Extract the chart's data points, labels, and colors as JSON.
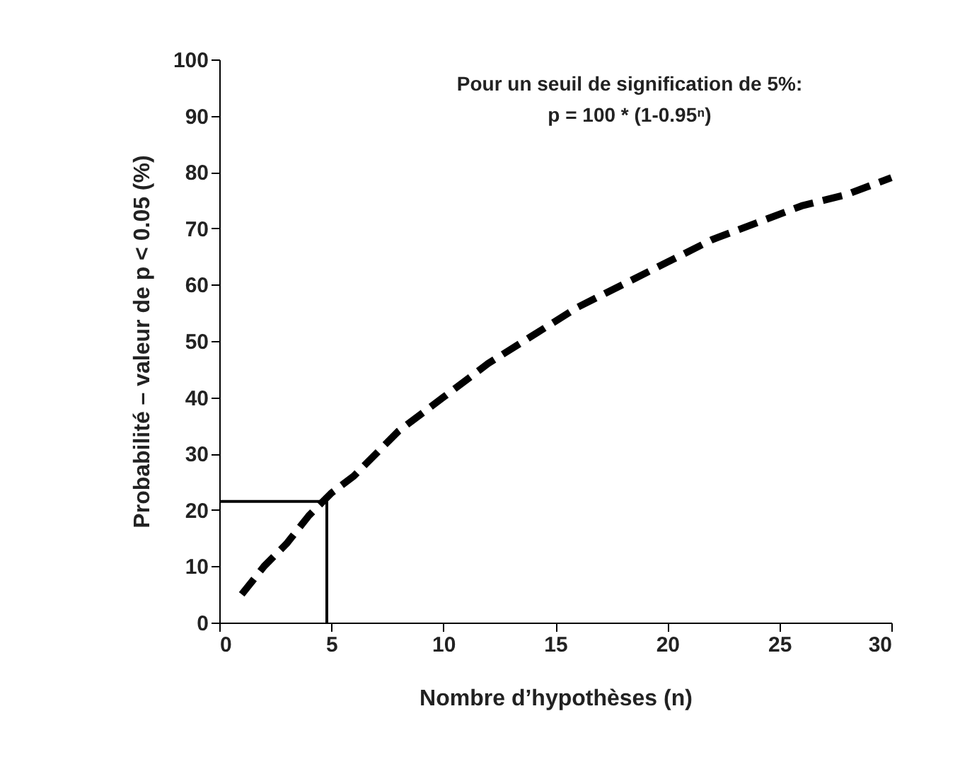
{
  "chart_data": {
    "type": "line",
    "xlabel": "Nombre d’hypothèses (n)",
    "ylabel": "Probabilité – valeur de p < 0.05 (%)",
    "annotations": [
      "Pour un seuil de signification de 5%:",
      "p = 100 * (1-0.95ⁿ)"
    ],
    "x": [
      1,
      2,
      3,
      4,
      5,
      6,
      7,
      8,
      9,
      10,
      12,
      14,
      16,
      18,
      20,
      22,
      24,
      26,
      28,
      30
    ],
    "series": [
      {
        "color": "#000000",
        "values": [
          5,
          10,
          14,
          19,
          23,
          26,
          30,
          34,
          37,
          40,
          46,
          51,
          56,
          60,
          64,
          68,
          71,
          74,
          76,
          79
        ]
      }
    ],
    "xlim": [
      0,
      30
    ],
    "xticks": [
      0,
      5,
      10,
      15,
      20,
      25,
      30
    ],
    "ylim": [
      0,
      100
    ],
    "yticks": [
      0,
      10,
      20,
      30,
      40,
      50,
      60,
      70,
      80,
      90,
      100
    ],
    "ref_lines": [
      {
        "axis": "x",
        "value": 4.8
      },
      {
        "axis": "y",
        "value": 21.5
      }
    ],
    "line_style": "dashed",
    "marker": "none",
    "grid": false
  }
}
